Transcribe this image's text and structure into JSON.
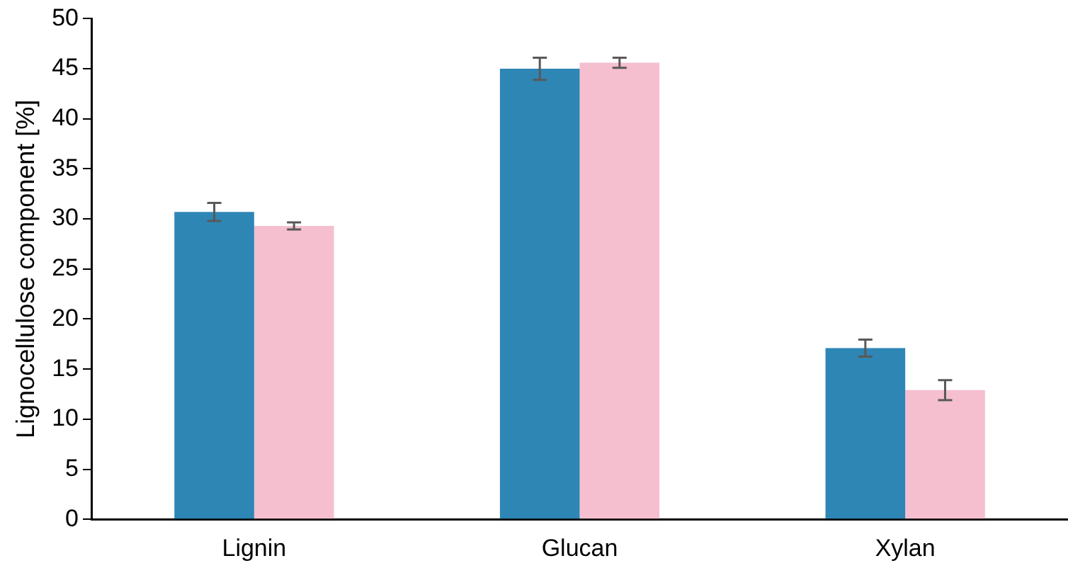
{
  "chart_data": {
    "type": "bar",
    "ylabel": "Lignocellulose component [%]",
    "categories": [
      "Lignin",
      "Glucan",
      "Xylan"
    ],
    "series": [
      {
        "color": "#2e86b5",
        "values": [
          30.7,
          45.0,
          17.1
        ],
        "errors": [
          0.9,
          1.1,
          0.85
        ]
      },
      {
        "color": "#f5bfcf",
        "values": [
          29.3,
          45.6,
          12.9
        ],
        "errors": [
          0.35,
          0.5,
          1.0
        ]
      }
    ],
    "ylim": [
      0,
      50
    ],
    "yticks": [
      0,
      5,
      10,
      15,
      20,
      25,
      30,
      35,
      40,
      45,
      50
    ],
    "grid": false,
    "legend": false
  }
}
